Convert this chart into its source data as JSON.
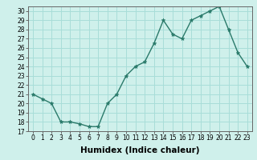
{
  "x": [
    0,
    1,
    2,
    3,
    4,
    5,
    6,
    7,
    8,
    9,
    10,
    11,
    12,
    13,
    14,
    15,
    16,
    17,
    18,
    19,
    20,
    21,
    22,
    23
  ],
  "y": [
    21.0,
    20.5,
    20.0,
    18.0,
    18.0,
    17.8,
    17.5,
    17.5,
    20.0,
    21.0,
    23.0,
    24.0,
    24.5,
    26.5,
    29.0,
    27.5,
    27.0,
    29.0,
    29.5,
    30.0,
    30.5,
    28.0,
    25.5,
    24.0
  ],
  "line_color": "#2a7a6a",
  "marker": "*",
  "marker_size": 3.5,
  "bg_color": "#cff0eb",
  "grid_color": "#a8ddd8",
  "xlabel": "Humidex (Indice chaleur)",
  "xlim": [
    -0.5,
    23.5
  ],
  "ylim": [
    17,
    30.5
  ],
  "yticks": [
    17,
    18,
    19,
    20,
    21,
    22,
    23,
    24,
    25,
    26,
    27,
    28,
    29,
    30
  ],
  "xticks": [
    0,
    1,
    2,
    3,
    4,
    5,
    6,
    7,
    8,
    9,
    10,
    11,
    12,
    13,
    14,
    15,
    16,
    17,
    18,
    19,
    20,
    21,
    22,
    23
  ],
  "tick_fontsize": 5.5,
  "xlabel_fontsize": 7.5
}
